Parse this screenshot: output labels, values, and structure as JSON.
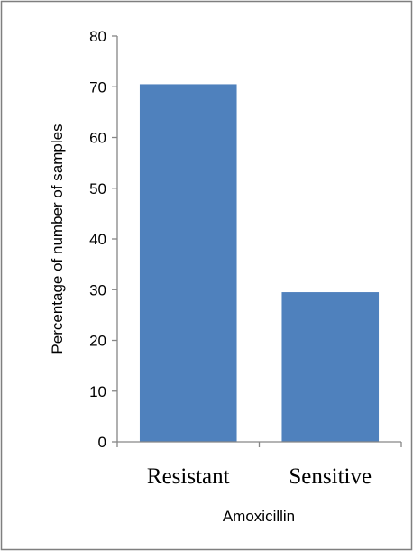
{
  "chart_data": {
    "type": "bar",
    "categories": [
      "Resistant",
      "Sensitive"
    ],
    "values": [
      70.5,
      29.5
    ],
    "xlabel": "Amoxicillin",
    "ylabel": "Percentage of number of samples",
    "ylim": [
      0,
      80
    ],
    "yticks": [
      "0",
      "10",
      "20",
      "30",
      "40",
      "50",
      "60",
      "70",
      "80"
    ],
    "grid": false,
    "legend": "none",
    "bar_color": "#4f81bd",
    "frame_color": "#7f7f7f"
  }
}
